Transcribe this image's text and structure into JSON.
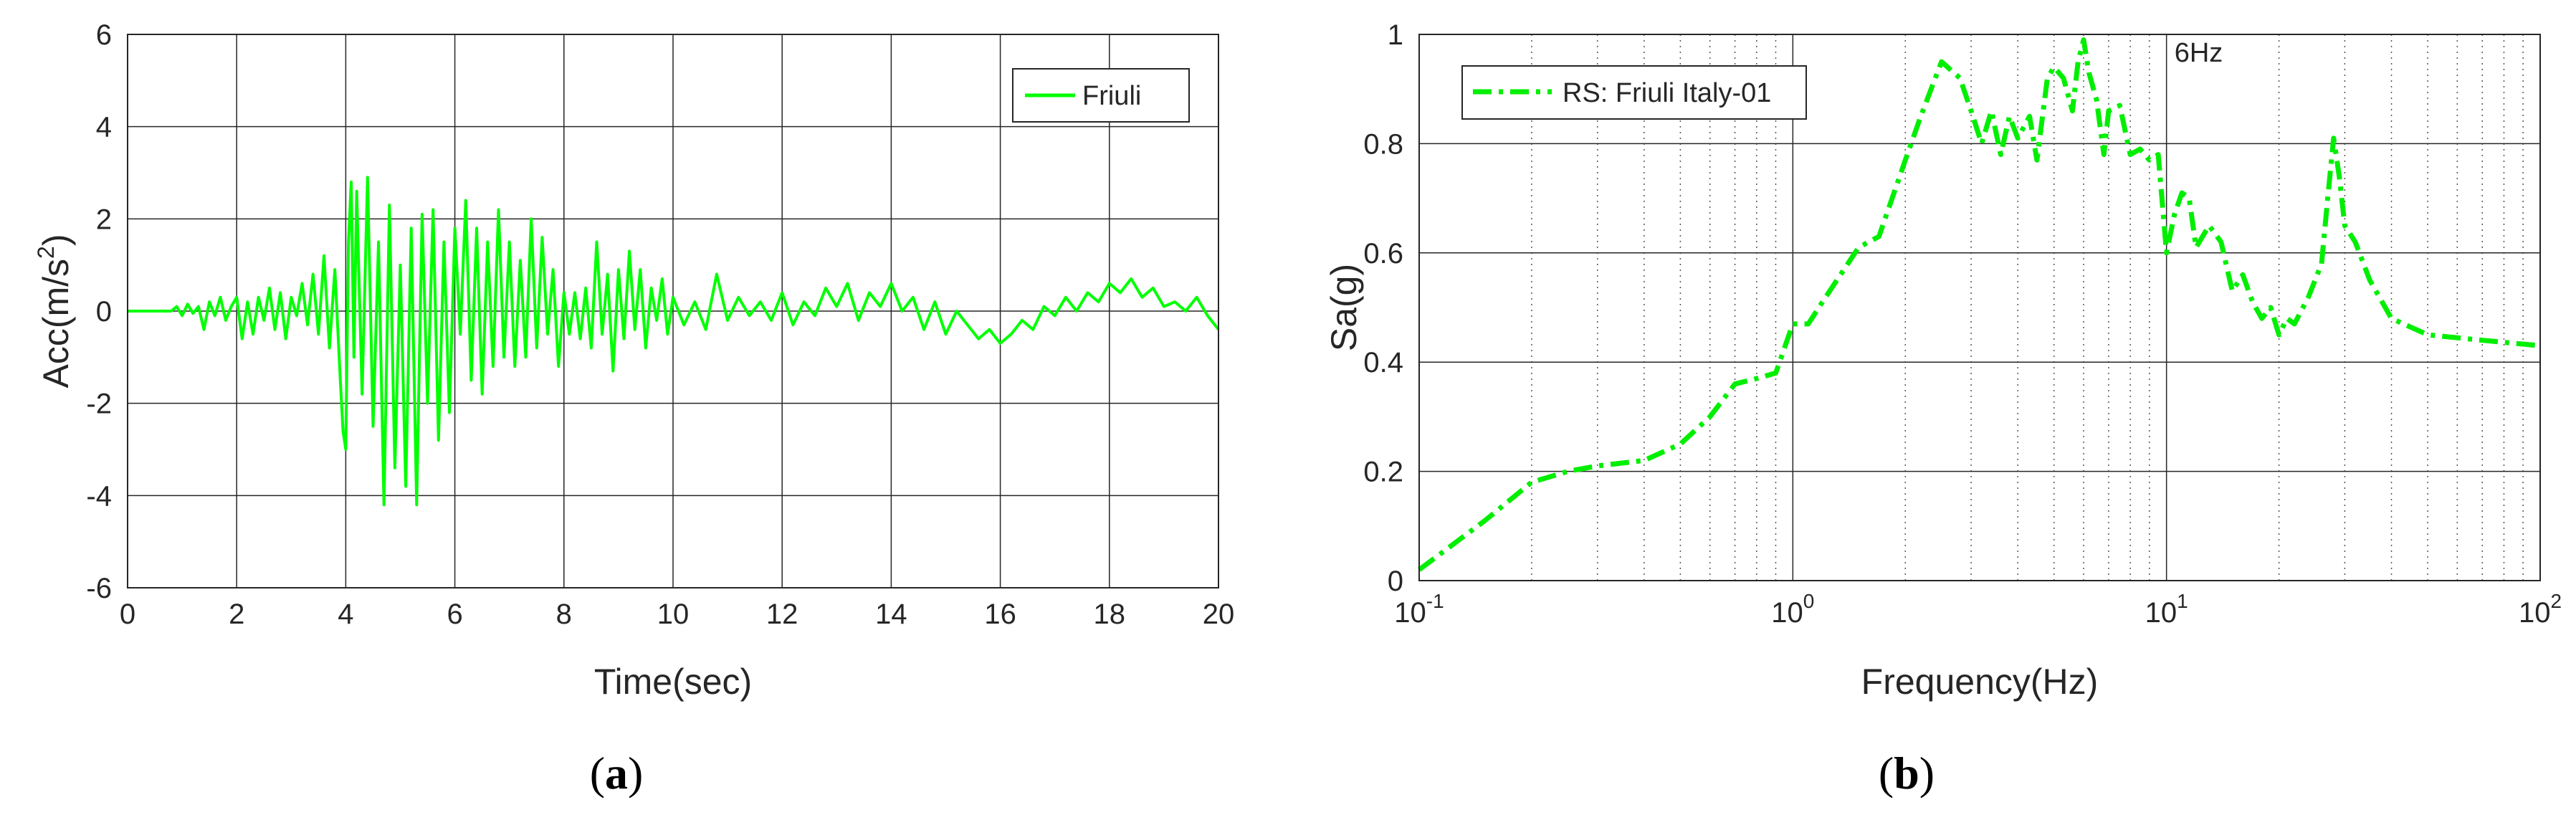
{
  "chart_data": [
    {
      "type": "line",
      "panel_label": "a",
      "xlabel": "Time(sec)",
      "ylabel_main": "Acc(m/s",
      "ylabel_sup": "2",
      "ylabel_close": ")",
      "xlim": [
        0,
        20
      ],
      "ylim": [
        -6,
        6
      ],
      "x_ticks": [
        0,
        2,
        4,
        6,
        8,
        10,
        12,
        14,
        16,
        18,
        20
      ],
      "x_tick_labels": [
        "0",
        "2",
        "4",
        "6",
        "8",
        "10",
        "12",
        "14",
        "16",
        "18",
        "20"
      ],
      "y_ticks": [
        -6,
        -4,
        -2,
        0,
        2,
        4,
        6
      ],
      "y_tick_labels": [
        "-6",
        "-4",
        "-2",
        "0",
        "2",
        "4",
        "6"
      ],
      "grid": true,
      "legend_position": "top-right",
      "series": [
        {
          "name": "Friuli",
          "color": "#00ff00",
          "line_style": "solid",
          "x": [
            0,
            0.8,
            0.9,
            1.0,
            1.1,
            1.2,
            1.3,
            1.4,
            1.5,
            1.6,
            1.7,
            1.8,
            1.9,
            2.0,
            2.1,
            2.2,
            2.3,
            2.4,
            2.5,
            2.6,
            2.7,
            2.8,
            2.9,
            3.0,
            3.1,
            3.2,
            3.3,
            3.4,
            3.5,
            3.6,
            3.7,
            3.8,
            3.9,
            3.95,
            4.0,
            4.05,
            4.1,
            4.15,
            4.2,
            4.3,
            4.4,
            4.5,
            4.6,
            4.7,
            4.8,
            4.9,
            5.0,
            5.1,
            5.2,
            5.3,
            5.4,
            5.5,
            5.6,
            5.7,
            5.8,
            5.9,
            6.0,
            6.1,
            6.2,
            6.3,
            6.4,
            6.5,
            6.6,
            6.7,
            6.8,
            6.9,
            7.0,
            7.1,
            7.2,
            7.3,
            7.4,
            7.5,
            7.6,
            7.7,
            7.8,
            7.9,
            8.0,
            8.1,
            8.2,
            8.3,
            8.4,
            8.5,
            8.6,
            8.7,
            8.8,
            8.9,
            9.0,
            9.1,
            9.2,
            9.3,
            9.4,
            9.5,
            9.6,
            9.7,
            9.8,
            9.9,
            10.0,
            10.2,
            10.4,
            10.6,
            10.8,
            11.0,
            11.2,
            11.4,
            11.6,
            11.8,
            12.0,
            12.2,
            12.4,
            12.6,
            12.8,
            13.0,
            13.2,
            13.4,
            13.6,
            13.8,
            14.0,
            14.2,
            14.4,
            14.6,
            14.8,
            15.0,
            15.2,
            15.4,
            15.6,
            15.8,
            16.0,
            16.2,
            16.4,
            16.6,
            16.8,
            17.0,
            17.2,
            17.4,
            17.6,
            17.8,
            18.0,
            18.2,
            18.4,
            18.6,
            18.8,
            19.0,
            19.2,
            19.4,
            19.6,
            19.8,
            20.0
          ],
          "y": [
            0,
            0,
            0.1,
            -0.1,
            0.15,
            -0.05,
            0.1,
            -0.4,
            0.2,
            -0.1,
            0.3,
            -0.2,
            0.1,
            0.3,
            -0.6,
            0.2,
            -0.5,
            0.3,
            -0.2,
            0.5,
            -0.4,
            0.4,
            -0.6,
            0.3,
            -0.1,
            0.6,
            -0.3,
            0.8,
            -0.5,
            1.2,
            -0.8,
            0.9,
            -1.5,
            -2.6,
            -3.0,
            1.5,
            2.8,
            -1.0,
            2.6,
            -1.8,
            2.9,
            -2.5,
            1.5,
            -4.2,
            2.3,
            -3.4,
            1.0,
            -3.8,
            1.8,
            -4.2,
            2.1,
            -2.0,
            2.2,
            -2.8,
            1.5,
            -2.2,
            1.8,
            -0.5,
            2.4,
            -1.5,
            1.8,
            -1.8,
            1.5,
            -1.2,
            2.2,
            -1.0,
            1.5,
            -1.2,
            1.1,
            -1.0,
            2.0,
            -0.8,
            1.6,
            -0.5,
            0.9,
            -1.2,
            0.4,
            -0.5,
            0.4,
            -0.6,
            0.5,
            -0.8,
            1.5,
            -0.5,
            0.8,
            -1.3,
            0.9,
            -0.6,
            1.3,
            -0.4,
            0.9,
            -0.8,
            0.5,
            -0.2,
            0.7,
            -0.5,
            0.3,
            -0.3,
            0.2,
            -0.4,
            0.8,
            -0.2,
            0.3,
            -0.1,
            0.2,
            -0.2,
            0.4,
            -0.3,
            0.2,
            -0.1,
            0.5,
            0.1,
            0.6,
            -0.2,
            0.4,
            0.1,
            0.6,
            0.0,
            0.3,
            -0.4,
            0.2,
            -0.5,
            0.0,
            -0.3,
            -0.6,
            -0.4,
            -0.7,
            -0.5,
            -0.2,
            -0.4,
            0.1,
            -0.1,
            0.3,
            0.0,
            0.4,
            0.2,
            0.6,
            0.4,
            0.7,
            0.3,
            0.5,
            0.1,
            0.2,
            0.0,
            0.3,
            -0.1,
            -0.4
          ]
        }
      ]
    },
    {
      "type": "line",
      "panel_label": "b",
      "xlabel": "Frequency(Hz)",
      "ylabel": "Sa(g)",
      "x_scale": "log",
      "xlim": [
        0.1,
        100
      ],
      "ylim": [
        0,
        1
      ],
      "x_tick_values": [
        0.1,
        1,
        10,
        100
      ],
      "x_tick_base": "10",
      "x_tick_exponents": [
        "-1",
        "0",
        "1",
        "2"
      ],
      "y_ticks": [
        0,
        0.2,
        0.4,
        0.6,
        0.8,
        1
      ],
      "y_tick_labels": [
        "0",
        "0.2",
        "0.4",
        "0.6",
        "0.8",
        "1"
      ],
      "grid": true,
      "minor_grid": true,
      "legend_position": "top-left",
      "annotation": "6Hz",
      "annotation_x": 10.5,
      "annotation_y": 0.95,
      "series": [
        {
          "name": "RS: Friuli Italy-01",
          "color": "#00ee00",
          "line_style": "dash-dot",
          "x": [
            0.1,
            0.15,
            0.2,
            0.25,
            0.3,
            0.4,
            0.5,
            0.6,
            0.7,
            0.8,
            0.9,
            1.0,
            1.1,
            1.2,
            1.5,
            1.7,
            2.0,
            2.2,
            2.5,
            2.8,
            3.0,
            3.2,
            3.4,
            3.6,
            3.8,
            4.0,
            4.3,
            4.5,
            4.8,
            5.0,
            5.3,
            5.6,
            5.8,
            6.0,
            6.2,
            6.5,
            6.8,
            7.0,
            7.5,
            8.0,
            8.5,
            9.0,
            9.5,
            10.0,
            10.5,
            11.0,
            11.5,
            12.0,
            13.0,
            14.0,
            15.0,
            16.0,
            17.0,
            18.0,
            19.0,
            20.0,
            21.0,
            22.0,
            24.0,
            26.0,
            27.0,
            28.0,
            29.0,
            30.0,
            32.0,
            35.0,
            40.0,
            50.0,
            70.0,
            100.0
          ],
          "y": [
            0.02,
            0.11,
            0.18,
            0.2,
            0.21,
            0.22,
            0.25,
            0.3,
            0.36,
            0.37,
            0.38,
            0.47,
            0.47,
            0.51,
            0.61,
            0.63,
            0.77,
            0.85,
            0.95,
            0.92,
            0.86,
            0.8,
            0.86,
            0.78,
            0.85,
            0.81,
            0.85,
            0.77,
            0.92,
            0.94,
            0.92,
            0.86,
            0.95,
            0.99,
            0.93,
            0.88,
            0.78,
            0.86,
            0.87,
            0.78,
            0.79,
            0.77,
            0.78,
            0.6,
            0.67,
            0.71,
            0.7,
            0.61,
            0.65,
            0.62,
            0.53,
            0.56,
            0.51,
            0.48,
            0.5,
            0.45,
            0.48,
            0.47,
            0.52,
            0.58,
            0.7,
            0.81,
            0.74,
            0.65,
            0.62,
            0.55,
            0.48,
            0.45,
            0.44,
            0.43
          ]
        }
      ]
    }
  ]
}
